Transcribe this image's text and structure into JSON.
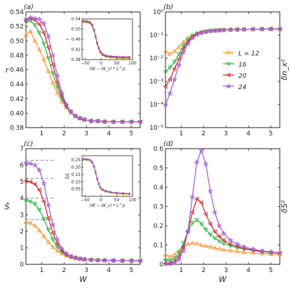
{
  "figure": {
    "legend": [
      "L = 12",
      "16",
      "20",
      "24"
    ],
    "series_colors": [
      "#f99a3c",
      "#2fb84a",
      "#d32a2a",
      "#a463d6"
    ],
    "series_markers": [
      "triangle-up",
      "triangle-down",
      "triangle-left",
      "star"
    ]
  },
  "chart_data": [
    {
      "panel": "(a)",
      "type": "line",
      "xlabel": "",
      "ylabel": "r",
      "xlim": [
        0.3,
        5.4
      ],
      "ylim": [
        0.38,
        0.54
      ],
      "xticks": [
        "1",
        "2",
        "3",
        "4",
        "5"
      ],
      "yticks": [
        "0.38",
        "0.40",
        "0.42",
        "0.44",
        "0.46",
        "0.48",
        "0.50",
        "0.52",
        "0.54"
      ],
      "x": [
        0.3,
        0.5,
        0.7,
        0.9,
        1.1,
        1.3,
        1.5,
        1.7,
        1.9,
        2.1,
        2.3,
        2.5,
        2.7,
        2.9,
        3.2,
        3.5,
        3.8,
        4.2,
        4.6,
        5.0,
        5.4
      ],
      "series": [
        {
          "name": "L = 12",
          "values": [
            0.508,
            0.513,
            0.5,
            0.488,
            0.474,
            0.458,
            0.442,
            0.428,
            0.416,
            0.408,
            0.401,
            0.396,
            0.393,
            0.391,
            0.39,
            0.389,
            0.389,
            0.388,
            0.388,
            0.388,
            0.388
          ]
        },
        {
          "name": "16",
          "values": [
            0.526,
            0.528,
            0.522,
            0.511,
            0.496,
            0.476,
            0.455,
            0.436,
            0.42,
            0.409,
            0.401,
            0.396,
            0.393,
            0.391,
            0.389,
            0.389,
            0.388,
            0.388,
            0.388,
            0.388,
            0.388
          ]
        },
        {
          "name": "20",
          "values": [
            0.528,
            0.531,
            0.529,
            0.523,
            0.511,
            0.491,
            0.467,
            0.443,
            0.424,
            0.41,
            0.402,
            0.396,
            0.393,
            0.391,
            0.389,
            0.389,
            0.388,
            0.388,
            0.388,
            0.388,
            0.388
          ]
        },
        {
          "name": "24",
          "values": [
            0.53,
            0.532,
            0.531,
            0.53,
            0.524,
            0.506,
            0.48,
            0.452,
            0.428,
            0.412,
            0.402,
            0.396,
            0.393,
            0.391,
            0.389,
            0.389,
            0.388,
            0.388,
            0.388,
            0.388,
            0.388
          ]
        }
      ],
      "inset": {
        "xlabel": "(W − W_c) * L^ρ",
        "ylabel": "r",
        "xlim": [
          -60,
          100
        ],
        "ylim": [
          0.38,
          0.54
        ],
        "xticks": [
          "−50",
          "0",
          "50",
          "100"
        ],
        "yticks": [
          "0.38",
          "0.42",
          "0.46",
          "0.50",
          "0.54"
        ],
        "x": [
          -55,
          -45,
          -35,
          -28,
          -22,
          -17,
          -12,
          -7,
          -2,
          5,
          15,
          30,
          50,
          70,
          90
        ],
        "values": [
          0.53,
          0.529,
          0.526,
          0.515,
          0.495,
          0.47,
          0.445,
          0.425,
          0.41,
          0.4,
          0.394,
          0.391,
          0.389,
          0.388,
          0.388
        ]
      }
    },
    {
      "panel": "(b)",
      "type": "line",
      "xlabel": "",
      "ylabel": "δn_x²",
      "log_y": true,
      "xlim": [
        0.3,
        5.4
      ],
      "ylim": [
        1e-05,
        1
      ],
      "xticks": [
        "1",
        "2",
        "3",
        "4",
        "5"
      ],
      "yticks": [
        "10⁻⁵",
        "10⁻⁴",
        "10⁻³",
        "10⁻²",
        "10⁻¹",
        "10⁰"
      ],
      "x": [
        0.3,
        0.5,
        0.7,
        0.9,
        1.1,
        1.3,
        1.5,
        1.7,
        1.9,
        2.1,
        2.3,
        2.5,
        2.7,
        2.9,
        3.2,
        3.5,
        3.8,
        4.2,
        4.6,
        5.0,
        5.4
      ],
      "series": [
        {
          "name": "L = 12",
          "values": [
            0.02,
            0.015,
            0.02,
            0.03,
            0.05,
            0.075,
            0.1,
            0.12,
            0.135,
            0.145,
            0.152,
            0.158,
            0.162,
            0.166,
            0.17,
            0.173,
            0.176,
            0.178,
            0.18,
            0.182,
            0.183
          ]
        },
        {
          "name": "16",
          "values": [
            0.0025,
            0.004,
            0.007,
            0.015,
            0.035,
            0.06,
            0.09,
            0.115,
            0.13,
            0.142,
            0.15,
            0.156,
            0.161,
            0.165,
            0.169,
            0.172,
            0.175,
            0.178,
            0.18,
            0.182,
            0.183
          ]
        },
        {
          "name": "20",
          "values": [
            0.0006,
            0.0012,
            0.0035,
            0.009,
            0.025,
            0.05,
            0.082,
            0.11,
            0.128,
            0.14,
            0.149,
            0.155,
            0.16,
            0.164,
            0.169,
            0.172,
            0.175,
            0.178,
            0.18,
            0.182,
            0.183
          ]
        },
        {
          "name": "24",
          "values": [
            0.0001,
            0.0003,
            0.0012,
            0.005,
            0.018,
            0.042,
            0.075,
            0.105,
            0.125,
            0.138,
            0.148,
            0.155,
            0.16,
            0.164,
            0.169,
            0.172,
            0.175,
            0.178,
            0.18,
            0.182,
            0.183
          ]
        }
      ]
    },
    {
      "panel": "(c)",
      "type": "line",
      "xlabel": "W",
      "ylabel": "S̄",
      "xlim": [
        0.3,
        5.4
      ],
      "ylim": [
        0,
        7
      ],
      "xticks": [
        "1",
        "2",
        "3",
        "4",
        "5"
      ],
      "yticks": [
        "0",
        "1",
        "2",
        "3",
        "4",
        "5",
        "6",
        "7"
      ],
      "reference_levels": [
        2.7,
        4.0,
        5.2,
        6.3
      ],
      "x": [
        0.3,
        0.5,
        0.7,
        0.9,
        1.1,
        1.3,
        1.5,
        1.7,
        1.9,
        2.1,
        2.3,
        2.5,
        2.7,
        2.9,
        3.2,
        3.5,
        3.8,
        4.2,
        4.6,
        5.0,
        5.4
      ],
      "series": [
        {
          "name": "L = 12",
          "values": [
            2.55,
            2.5,
            2.35,
            2.05,
            1.7,
            1.35,
            1.05,
            0.82,
            0.65,
            0.52,
            0.43,
            0.37,
            0.33,
            0.3,
            0.27,
            0.25,
            0.24,
            0.23,
            0.22,
            0.22,
            0.21
          ]
        },
        {
          "name": "16",
          "values": [
            3.85,
            3.8,
            3.65,
            3.3,
            2.75,
            2.1,
            1.5,
            1.05,
            0.75,
            0.56,
            0.45,
            0.38,
            0.33,
            0.3,
            0.27,
            0.25,
            0.24,
            0.23,
            0.22,
            0.22,
            0.21
          ]
        },
        {
          "name": "20",
          "values": [
            5.05,
            5.0,
            4.85,
            4.5,
            3.8,
            2.8,
            1.9,
            1.25,
            0.85,
            0.6,
            0.47,
            0.39,
            0.34,
            0.3,
            0.27,
            0.25,
            0.24,
            0.23,
            0.22,
            0.22,
            0.21
          ]
        },
        {
          "name": "24",
          "values": [
            6.15,
            6.1,
            6.0,
            5.7,
            4.9,
            3.6,
            2.4,
            1.5,
            0.95,
            0.65,
            0.49,
            0.4,
            0.34,
            0.3,
            0.27,
            0.25,
            0.24,
            0.23,
            0.22,
            0.22,
            0.21
          ]
        }
      ],
      "inset": {
        "xlabel": "(W − W_c) * L^ρ",
        "ylabel": "S̄/L",
        "xlim": [
          -60,
          100
        ],
        "ylim": [
          0.0,
          0.28
        ],
        "xticks": [
          "−50",
          "0",
          "50",
          "100"
        ],
        "yticks": [
          "0.05",
          "0.10",
          "0.15",
          "0.20",
          "0.25"
        ],
        "x": [
          -55,
          -45,
          -35,
          -28,
          -22,
          -17,
          -12,
          -7,
          -2,
          5,
          15,
          30,
          50,
          70,
          90
        ],
        "values": [
          0.255,
          0.254,
          0.25,
          0.235,
          0.205,
          0.165,
          0.12,
          0.085,
          0.06,
          0.045,
          0.035,
          0.028,
          0.022,
          0.019,
          0.017
        ]
      }
    },
    {
      "panel": "(d)",
      "type": "line",
      "xlabel": "W",
      "ylabel": "δS²",
      "xlim": [
        0.3,
        5.4
      ],
      "ylim": [
        0,
        0.6
      ],
      "xticks": [
        "1",
        "2",
        "3",
        "4",
        "5"
      ],
      "yticks": [
        "0",
        "0.1",
        "0.2",
        "0.3",
        "0.4",
        "0.5",
        "0.6"
      ],
      "x": [
        0.3,
        0.5,
        0.7,
        0.9,
        1.1,
        1.3,
        1.5,
        1.7,
        1.9,
        2.1,
        2.3,
        2.5,
        2.7,
        2.9,
        3.2,
        3.5,
        3.8,
        4.2,
        4.6,
        5.0,
        5.4
      ],
      "series": [
        {
          "name": "L = 12",
          "values": [
            0.05,
            0.04,
            0.05,
            0.07,
            0.09,
            0.105,
            0.11,
            0.108,
            0.1,
            0.095,
            0.09,
            0.085,
            0.08,
            0.076,
            0.071,
            0.067,
            0.063,
            0.059,
            0.056,
            0.053,
            0.05
          ]
        },
        {
          "name": "16",
          "values": [
            0.02,
            0.02,
            0.03,
            0.06,
            0.11,
            0.17,
            0.215,
            0.23,
            0.21,
            0.18,
            0.155,
            0.135,
            0.12,
            0.108,
            0.096,
            0.087,
            0.08,
            0.072,
            0.066,
            0.061,
            0.057
          ]
        },
        {
          "name": "20",
          "values": [
            0.005,
            0.008,
            0.015,
            0.04,
            0.09,
            0.17,
            0.27,
            0.34,
            0.32,
            0.26,
            0.21,
            0.17,
            0.145,
            0.125,
            0.105,
            0.093,
            0.083,
            0.074,
            0.067,
            0.062,
            0.058
          ]
        },
        {
          "name": "24",
          "values": [
            0.002,
            0.003,
            0.008,
            0.025,
            0.07,
            0.17,
            0.35,
            0.53,
            0.59,
            0.52,
            0.38,
            0.27,
            0.2,
            0.16,
            0.125,
            0.105,
            0.091,
            0.079,
            0.07,
            0.064,
            0.059
          ]
        }
      ]
    }
  ]
}
